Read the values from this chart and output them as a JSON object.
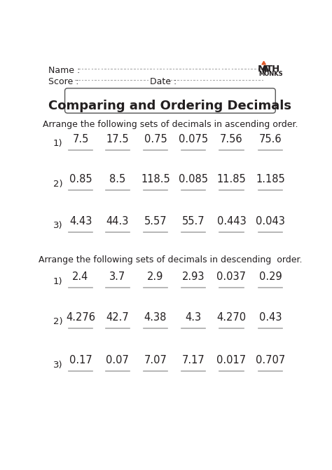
{
  "title": "Comparing and Ordering Decimals",
  "name_label": "Name :",
  "score_label": "Score :",
  "date_label": "Date :",
  "ascending_instruction": "Arrange the following sets of decimals in ascending order.",
  "descending_instruction": "Arrange the following sets of decimals in descending  order.",
  "ascending_rows": [
    {
      "num": "1)",
      "values": [
        "7.5",
        "17.5",
        "0.75",
        "0.075",
        "7.56",
        "75.6"
      ]
    },
    {
      "num": "2)",
      "values": [
        "0.85",
        "8.5",
        "118.5",
        "0.085",
        "11.85",
        "1.185"
      ]
    },
    {
      "num": "3)",
      "values": [
        "4.43",
        "44.3",
        "5.57",
        "55.7",
        "0.443",
        "0.043"
      ]
    }
  ],
  "descending_rows": [
    {
      "num": "1)",
      "values": [
        "2.4",
        "3.7",
        "2.9",
        "2.93",
        "0.037",
        "0.29"
      ]
    },
    {
      "num": "2)",
      "values": [
        "4.276",
        "42.7",
        "4.38",
        "4.3",
        "4.270",
        "0.43"
      ]
    },
    {
      "num": "3)",
      "values": [
        "0.17",
        "0.07",
        "7.07",
        "7.17",
        "0.017",
        "0.707"
      ]
    }
  ],
  "bg_color": "#ffffff",
  "text_color": "#231f20",
  "line_color": "#aaaaaa",
  "title_box_color": "#ffffff",
  "title_box_edge": "#555555",
  "math_monks_color_triangle": "#e05a2b",
  "dotted_line_color": "#aaaaaa"
}
